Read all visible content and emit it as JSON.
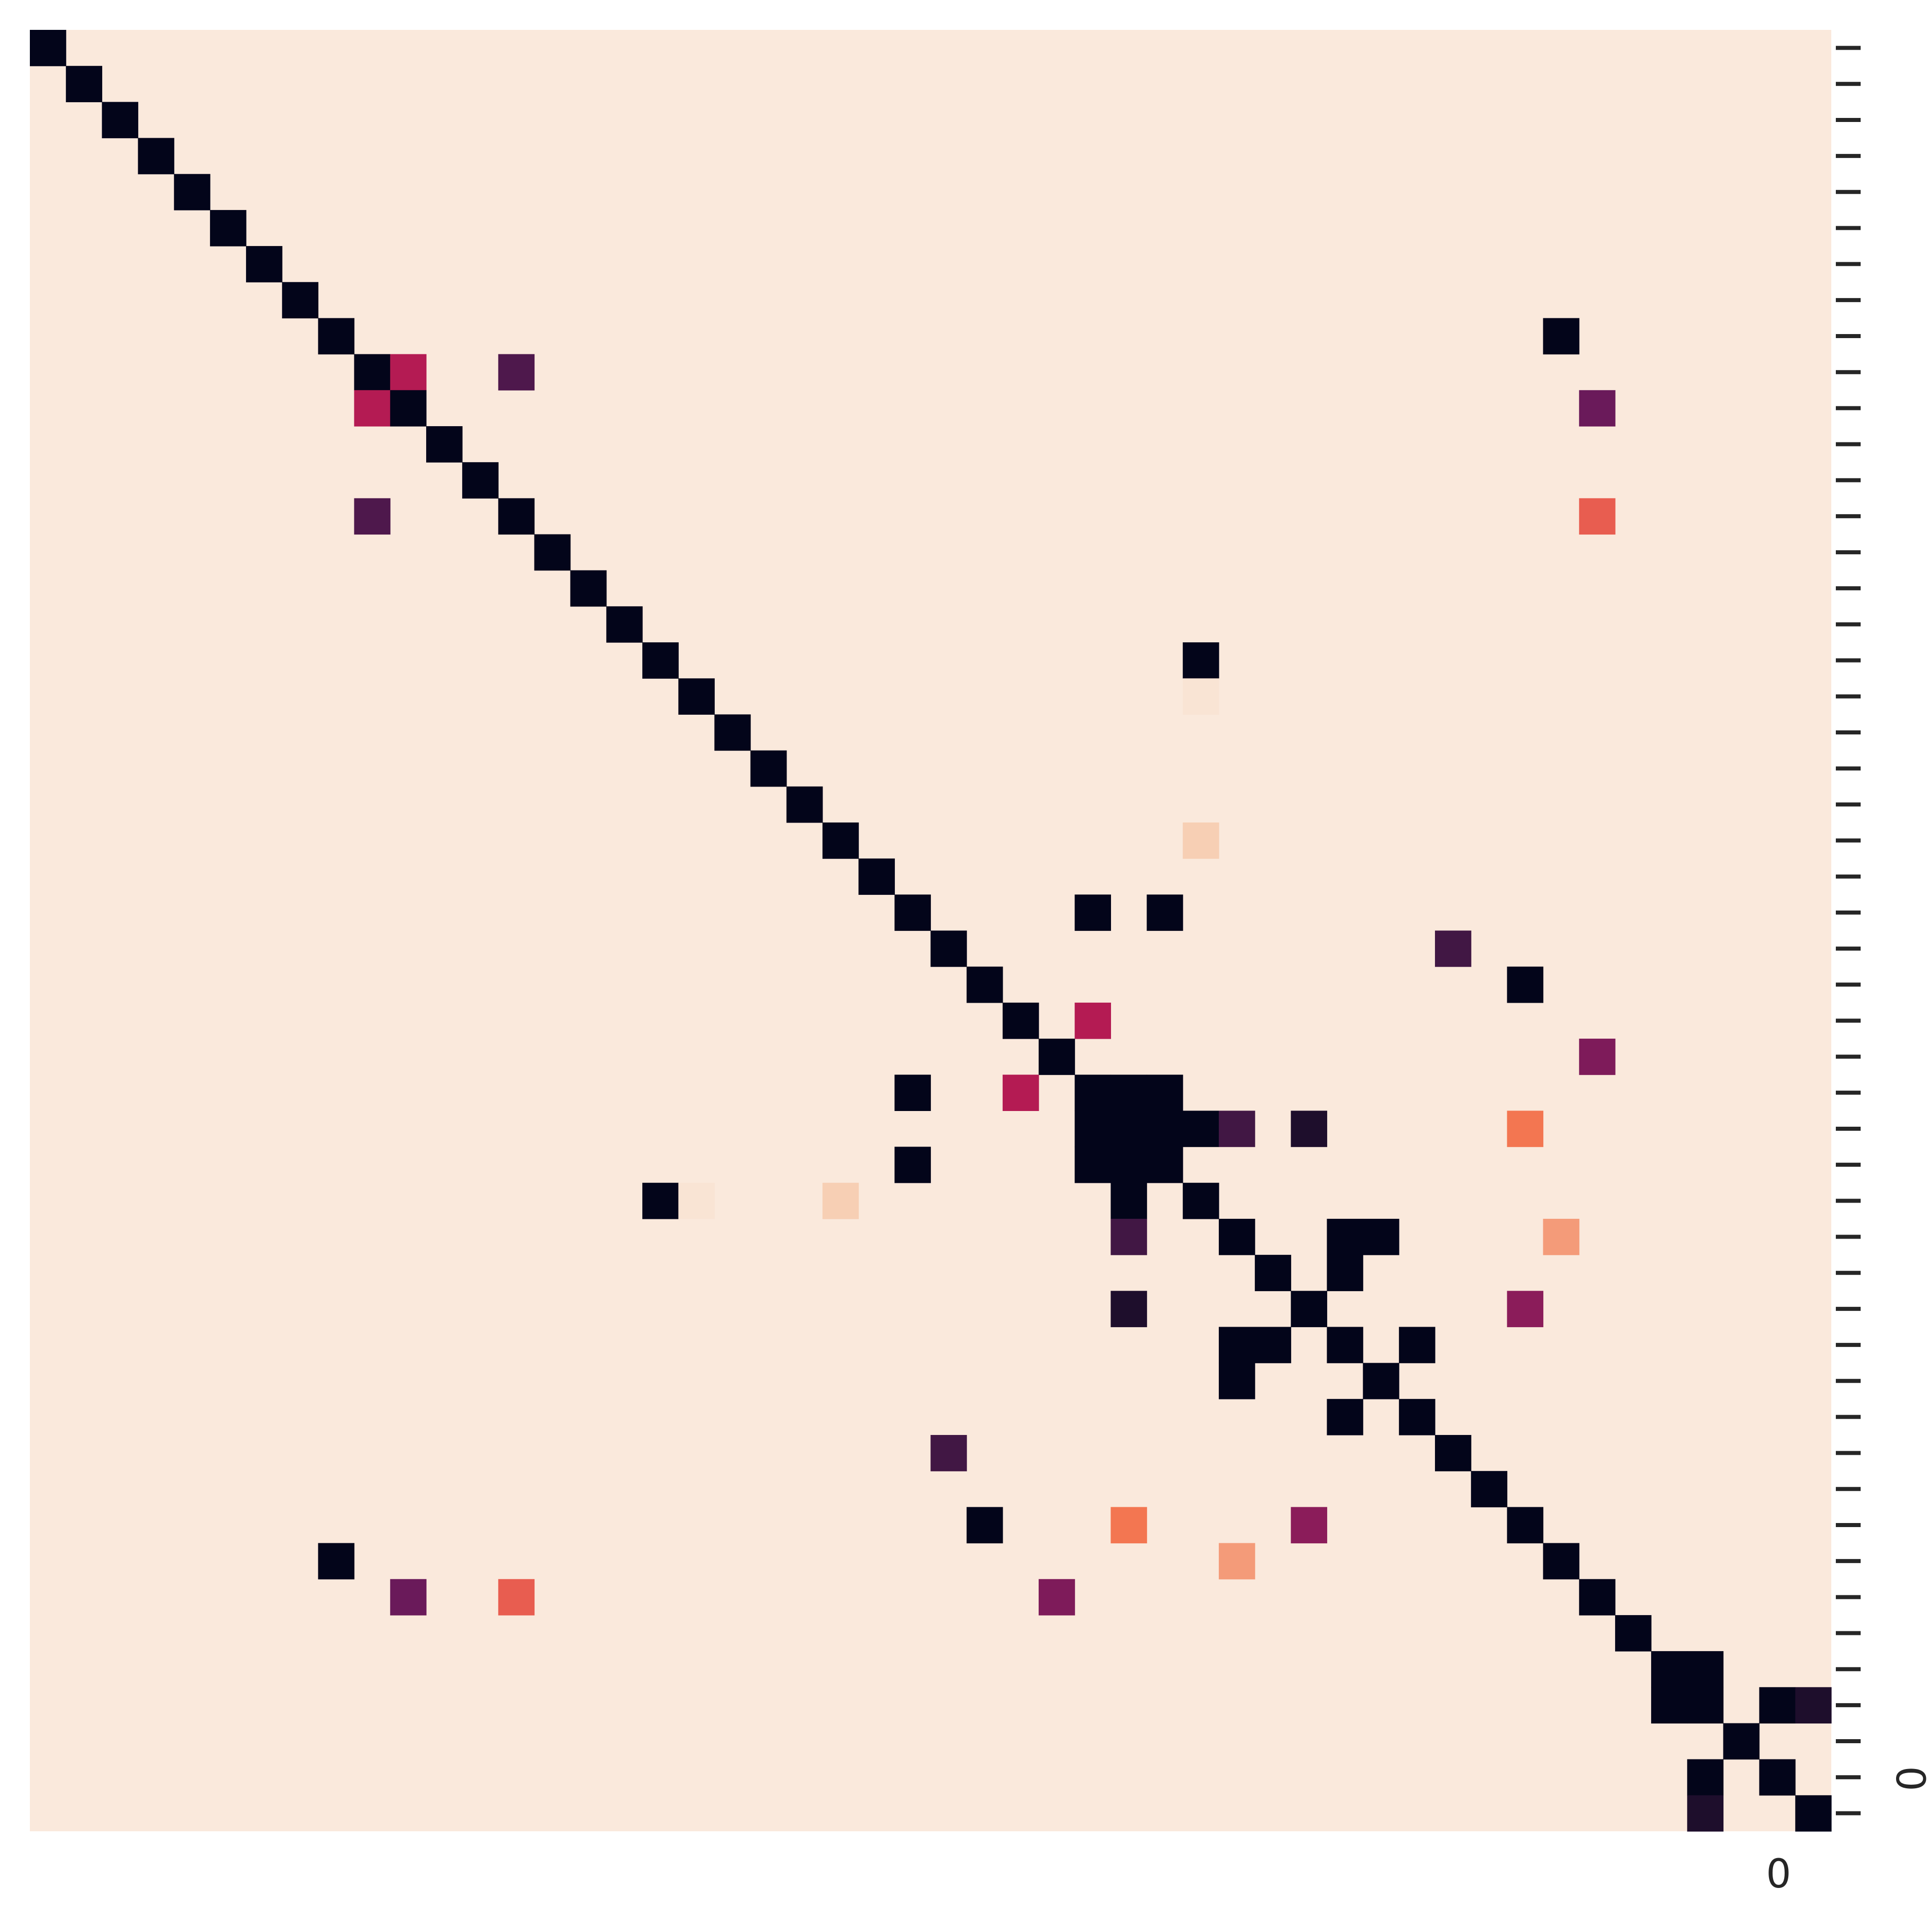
{
  "chart_data": {
    "type": "heatmap",
    "title": "",
    "xlabel": "",
    "ylabel": "",
    "n_rows": 50,
    "n_cols": 50,
    "x_tick_label": "0",
    "y_tick_label": "0",
    "y_tick_count": 50,
    "value_range": [
      0,
      1
    ],
    "default_value": 0,
    "colormap": "rocket_r",
    "colors": {
      "background": "#fae9dc",
      "max": "#03051a"
    },
    "cells": [
      {
        "row": 0,
        "col": 0,
        "value": 1
      },
      {
        "row": 1,
        "col": 1,
        "value": 1
      },
      {
        "row": 2,
        "col": 2,
        "value": 1
      },
      {
        "row": 3,
        "col": 3,
        "value": 1
      },
      {
        "row": 4,
        "col": 4,
        "value": 1
      },
      {
        "row": 5,
        "col": 5,
        "value": 1
      },
      {
        "row": 6,
        "col": 6,
        "value": 1
      },
      {
        "row": 7,
        "col": 7,
        "value": 1
      },
      {
        "row": 8,
        "col": 8,
        "value": 1
      },
      {
        "row": 8,
        "col": 42,
        "value": 1
      },
      {
        "row": 9,
        "col": 9,
        "value": 1
      },
      {
        "row": 9,
        "col": 10,
        "value": 0.55
      },
      {
        "row": 9,
        "col": 13,
        "value": 0.85
      },
      {
        "row": 10,
        "col": 9,
        "value": 0.55
      },
      {
        "row": 10,
        "col": 10,
        "value": 1
      },
      {
        "row": 10,
        "col": 43,
        "value": 0.78
      },
      {
        "row": 11,
        "col": 11,
        "value": 1
      },
      {
        "row": 12,
        "col": 12,
        "value": 1
      },
      {
        "row": 13,
        "col": 9,
        "value": 0.85
      },
      {
        "row": 13,
        "col": 13,
        "value": 1
      },
      {
        "row": 13,
        "col": 43,
        "value": 0.35
      },
      {
        "row": 14,
        "col": 14,
        "value": 1
      },
      {
        "row": 15,
        "col": 15,
        "value": 1
      },
      {
        "row": 16,
        "col": 16,
        "value": 1
      },
      {
        "row": 17,
        "col": 17,
        "value": 1
      },
      {
        "row": 17,
        "col": 32,
        "value": 1
      },
      {
        "row": 18,
        "col": 18,
        "value": 1
      },
      {
        "row": 18,
        "col": 32,
        "value": 0.02
      },
      {
        "row": 19,
        "col": 19,
        "value": 1
      },
      {
        "row": 20,
        "col": 20,
        "value": 1
      },
      {
        "row": 21,
        "col": 21,
        "value": 1
      },
      {
        "row": 22,
        "col": 22,
        "value": 1
      },
      {
        "row": 22,
        "col": 32,
        "value": 0.1
      },
      {
        "row": 23,
        "col": 23,
        "value": 1
      },
      {
        "row": 24,
        "col": 24,
        "value": 1
      },
      {
        "row": 24,
        "col": 29,
        "value": 1
      },
      {
        "row": 24,
        "col": 31,
        "value": 1
      },
      {
        "row": 25,
        "col": 25,
        "value": 1
      },
      {
        "row": 25,
        "col": 39,
        "value": 0.88
      },
      {
        "row": 26,
        "col": 26,
        "value": 1
      },
      {
        "row": 26,
        "col": 41,
        "value": 1
      },
      {
        "row": 27,
        "col": 27,
        "value": 1
      },
      {
        "row": 27,
        "col": 29,
        "value": 0.55
      },
      {
        "row": 28,
        "col": 28,
        "value": 1
      },
      {
        "row": 28,
        "col": 43,
        "value": 0.72
      },
      {
        "row": 29,
        "col": 24,
        "value": 1
      },
      {
        "row": 29,
        "col": 27,
        "value": 0.55
      },
      {
        "row": 29,
        "col": 29,
        "value": 1
      },
      {
        "row": 29,
        "col": 30,
        "value": 1
      },
      {
        "row": 29,
        "col": 31,
        "value": 1
      },
      {
        "row": 30,
        "col": 29,
        "value": 1
      },
      {
        "row": 30,
        "col": 30,
        "value": 1
      },
      {
        "row": 30,
        "col": 31,
        "value": 1
      },
      {
        "row": 30,
        "col": 32,
        "value": 1
      },
      {
        "row": 30,
        "col": 33,
        "value": 0.88
      },
      {
        "row": 30,
        "col": 35,
        "value": 0.95
      },
      {
        "row": 30,
        "col": 41,
        "value": 0.3
      },
      {
        "row": 31,
        "col": 24,
        "value": 1
      },
      {
        "row": 31,
        "col": 29,
        "value": 1
      },
      {
        "row": 31,
        "col": 30,
        "value": 1
      },
      {
        "row": 31,
        "col": 31,
        "value": 1
      },
      {
        "row": 32,
        "col": 17,
        "value": 1
      },
      {
        "row": 32,
        "col": 18,
        "value": 0.02
      },
      {
        "row": 32,
        "col": 22,
        "value": 0.1
      },
      {
        "row": 32,
        "col": 30,
        "value": 1
      },
      {
        "row": 32,
        "col": 32,
        "value": 1
      },
      {
        "row": 33,
        "col": 30,
        "value": 0.88
      },
      {
        "row": 33,
        "col": 33,
        "value": 1
      },
      {
        "row": 33,
        "col": 36,
        "value": 1
      },
      {
        "row": 33,
        "col": 37,
        "value": 1
      },
      {
        "row": 33,
        "col": 42,
        "value": 0.22
      },
      {
        "row": 34,
        "col": 34,
        "value": 1
      },
      {
        "row": 34,
        "col": 36,
        "value": 1
      },
      {
        "row": 35,
        "col": 30,
        "value": 0.95
      },
      {
        "row": 35,
        "col": 35,
        "value": 1
      },
      {
        "row": 35,
        "col": 41,
        "value": 0.68
      },
      {
        "row": 36,
        "col": 33,
        "value": 1
      },
      {
        "row": 36,
        "col": 34,
        "value": 1
      },
      {
        "row": 36,
        "col": 36,
        "value": 1
      },
      {
        "row": 36,
        "col": 38,
        "value": 1
      },
      {
        "row": 37,
        "col": 33,
        "value": 1
      },
      {
        "row": 37,
        "col": 37,
        "value": 1
      },
      {
        "row": 38,
        "col": 36,
        "value": 1
      },
      {
        "row": 38,
        "col": 38,
        "value": 1
      },
      {
        "row": 39,
        "col": 25,
        "value": 0.88
      },
      {
        "row": 39,
        "col": 39,
        "value": 1
      },
      {
        "row": 40,
        "col": 40,
        "value": 1
      },
      {
        "row": 41,
        "col": 26,
        "value": 1
      },
      {
        "row": 41,
        "col": 30,
        "value": 0.3
      },
      {
        "row": 41,
        "col": 35,
        "value": 0.68
      },
      {
        "row": 41,
        "col": 41,
        "value": 1
      },
      {
        "row": 42,
        "col": 8,
        "value": 1
      },
      {
        "row": 42,
        "col": 33,
        "value": 0.22
      },
      {
        "row": 42,
        "col": 42,
        "value": 1
      },
      {
        "row": 43,
        "col": 10,
        "value": 0.78
      },
      {
        "row": 43,
        "col": 13,
        "value": 0.35
      },
      {
        "row": 43,
        "col": 28,
        "value": 0.72
      },
      {
        "row": 43,
        "col": 43,
        "value": 1
      },
      {
        "row": 44,
        "col": 44,
        "value": 1
      },
      {
        "row": 45,
        "col": 45,
        "value": 1
      },
      {
        "row": 45,
        "col": 46,
        "value": 1
      },
      {
        "row": 46,
        "col": 45,
        "value": 1
      },
      {
        "row": 46,
        "col": 46,
        "value": 1
      },
      {
        "row": 46,
        "col": 48,
        "value": 1
      },
      {
        "row": 46,
        "col": 49,
        "value": 0.95
      },
      {
        "row": 47,
        "col": 47,
        "value": 1
      },
      {
        "row": 48,
        "col": 46,
        "value": 1
      },
      {
        "row": 48,
        "col": 48,
        "value": 1
      },
      {
        "row": 49,
        "col": 46,
        "value": 0.95
      },
      {
        "row": 49,
        "col": 49,
        "value": 1
      }
    ]
  }
}
